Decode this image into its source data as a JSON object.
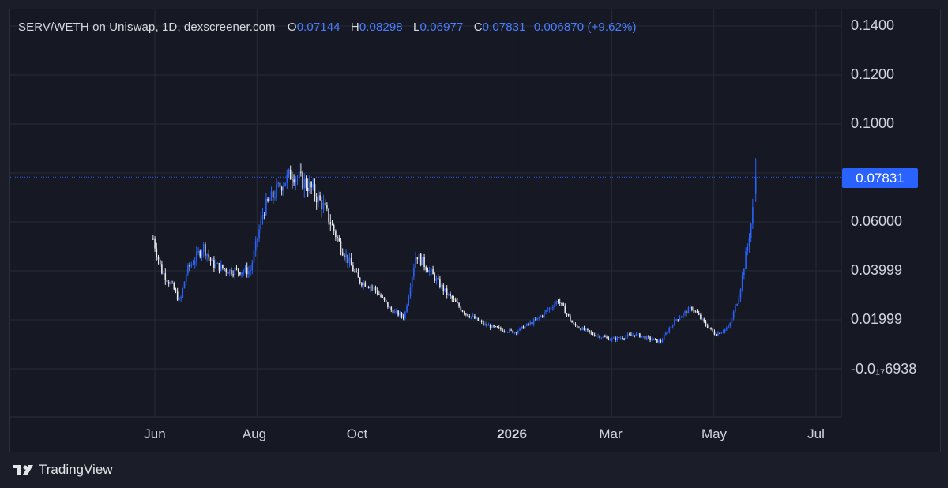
{
  "legend": {
    "title": "SERV/WETH on Uniswap, 1D, dexscreener.com",
    "o_label": "O",
    "o_value": "0.07144",
    "h_label": "H",
    "h_value": "0.08298",
    "l_label": "L",
    "l_value": "0.06977",
    "c_label": "C",
    "c_value": "0.07831",
    "change": "0.006870 (+9.62%)"
  },
  "price_tag": "0.07831",
  "brand": {
    "name": "TradingView",
    "icon": "tradingview-logo-icon"
  },
  "colors": {
    "background": "#161924",
    "up": "#2962ff",
    "down": "#e6e8ee",
    "grid": "#262a36",
    "price_line": "#2962ff"
  },
  "chart_data": {
    "type": "candlestick",
    "yticks": [
      "0.1400",
      "0.1200",
      "0.1000",
      "0.06000",
      "0.03999",
      "0.01999",
      "-0.0₁₇6938"
    ],
    "xticks": [
      {
        "label": "Jun",
        "date": "2025-06-01",
        "bold": false
      },
      {
        "label": "Aug",
        "date": "2025-08-01",
        "bold": false
      },
      {
        "label": "Oct",
        "date": "2025-10-01",
        "bold": false
      },
      {
        "label": "2026",
        "date": "2026-01-01",
        "bold": true
      },
      {
        "label": "Mar",
        "date": "2026-03-01",
        "bold": false
      },
      {
        "label": "May",
        "date": "2026-05-01",
        "bold": false
      },
      {
        "label": "Jul",
        "date": "2026-07-01",
        "bold": false
      }
    ],
    "ylim": [
      -0.01,
      0.14
    ],
    "grid": true,
    "last_price": 0.07831,
    "trend": [
      [
        "2025-05-31",
        0.053
      ],
      [
        "2025-06-05",
        0.04
      ],
      [
        "2025-06-12",
        0.033
      ],
      [
        "2025-06-16",
        0.027
      ],
      [
        "2025-06-20",
        0.04
      ],
      [
        "2025-06-30",
        0.05
      ],
      [
        "2025-07-05",
        0.043
      ],
      [
        "2025-07-15",
        0.04
      ],
      [
        "2025-07-28",
        0.04
      ],
      [
        "2025-08-05",
        0.065
      ],
      [
        "2025-08-15",
        0.075
      ],
      [
        "2025-08-22",
        0.08
      ],
      [
        "2025-09-02",
        0.074
      ],
      [
        "2025-09-10",
        0.066
      ],
      [
        "2025-09-20",
        0.05
      ],
      [
        "2025-10-01",
        0.036
      ],
      [
        "2025-10-10",
        0.033
      ],
      [
        "2025-10-20",
        0.024
      ],
      [
        "2025-10-28",
        0.021
      ],
      [
        "2025-11-04",
        0.047
      ],
      [
        "2025-11-12",
        0.04
      ],
      [
        "2025-11-22",
        0.031
      ],
      [
        "2025-12-03",
        0.023
      ],
      [
        "2025-12-15",
        0.018
      ],
      [
        "2025-12-25",
        0.016
      ],
      [
        "2026-01-02",
        0.015
      ],
      [
        "2026-01-15",
        0.02
      ],
      [
        "2026-01-28",
        0.028
      ],
      [
        "2026-02-06",
        0.018
      ],
      [
        "2026-02-18",
        0.014
      ],
      [
        "2026-03-01",
        0.012
      ],
      [
        "2026-03-15",
        0.014
      ],
      [
        "2026-03-30",
        0.011
      ],
      [
        "2026-04-08",
        0.02
      ],
      [
        "2026-04-18",
        0.025
      ],
      [
        "2026-04-26",
        0.018
      ],
      [
        "2026-05-02",
        0.014
      ],
      [
        "2026-05-10",
        0.017
      ],
      [
        "2026-05-16",
        0.03
      ],
      [
        "2026-05-21",
        0.05
      ],
      [
        "2026-05-24",
        0.063
      ],
      [
        "2026-05-26",
        0.07831
      ]
    ]
  }
}
